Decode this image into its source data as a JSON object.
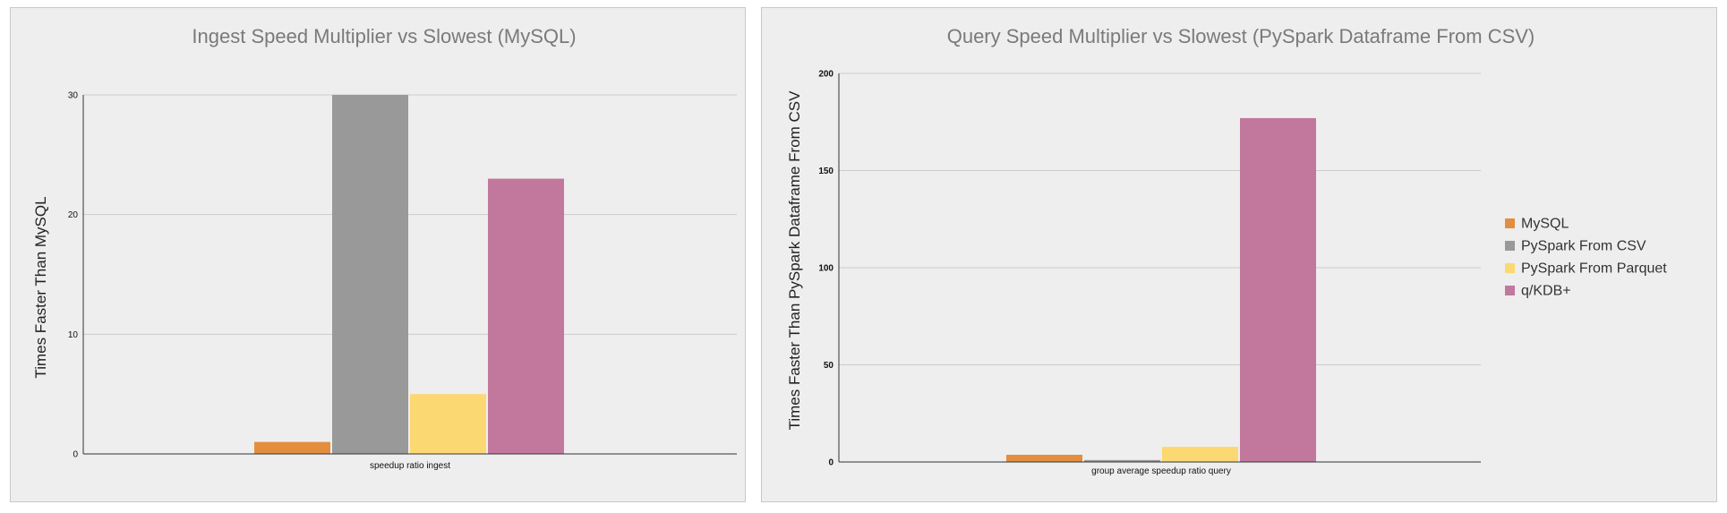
{
  "colors": {
    "MySQL": "#e38e3f",
    "PySpark From CSV": "#999999",
    "PySpark From Parquet": "#fcd873",
    "q/KDB+": "#c1789c",
    "grid": "#cccccc",
    "axis": "#333333"
  },
  "chart_data": [
    {
      "type": "bar",
      "title": "Ingest Speed Multiplier vs Slowest (MySQL)",
      "xlabel": "",
      "ylabel": "Times Faster Than MySQL",
      "categories": [
        "speedup ratio ingest"
      ],
      "yticks": [
        0,
        10,
        20,
        30
      ],
      "ylim": [
        0,
        30
      ],
      "grid": true,
      "legend": "none",
      "series": [
        {
          "name": "MySQL",
          "values": [
            1
          ]
        },
        {
          "name": "PySpark From CSV",
          "values": [
            30
          ]
        },
        {
          "name": "PySpark From Parquet",
          "values": [
            5
          ]
        },
        {
          "name": "q/KDB+",
          "values": [
            23
          ]
        }
      ]
    },
    {
      "type": "bar",
      "title": "Query Speed Multiplier vs Slowest (PySpark Dataframe From CSV)",
      "xlabel": "",
      "ylabel": "Times Faster Than PySpark Dataframe From CSV",
      "categories": [
        "group average speedup ratio query"
      ],
      "yticks": [
        0,
        50,
        100,
        150,
        200
      ],
      "ylim": [
        0,
        200
      ],
      "grid": true,
      "legend": "right",
      "series": [
        {
          "name": "MySQL",
          "values": [
            3.7
          ]
        },
        {
          "name": "PySpark From CSV",
          "values": [
            1
          ]
        },
        {
          "name": "PySpark From Parquet",
          "values": [
            7.8
          ]
        },
        {
          "name": "q/KDB+",
          "values": [
            177
          ]
        }
      ]
    }
  ]
}
